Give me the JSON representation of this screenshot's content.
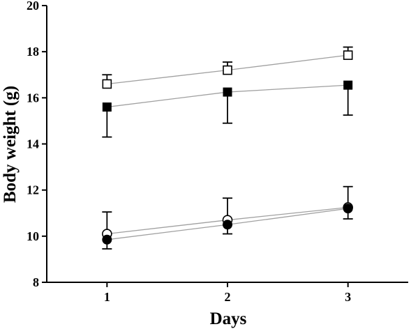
{
  "chart_data": {
    "type": "line",
    "title": "",
    "xlabel": "Days",
    "ylabel": "Body weight (g)",
    "x": [
      1,
      2,
      3
    ],
    "x_tick_labels": [
      "1",
      "2",
      "3"
    ],
    "xlim": [
      0.5,
      3.5
    ],
    "ylim": [
      8,
      20
    ],
    "y_ticks": [
      8,
      10,
      12,
      14,
      16,
      18,
      20
    ],
    "grid": false,
    "legend": "none",
    "colors": {
      "axis": "#000000",
      "series_line": "#a0a0a0",
      "marker": "#000000"
    },
    "series": [
      {
        "marker": "open-square",
        "values": [
          16.6,
          17.2,
          17.85
        ],
        "error_up": [
          0.4,
          0.35,
          0.35
        ],
        "error_down": [
          0,
          0,
          0
        ]
      },
      {
        "marker": "filled-square",
        "values": [
          15.6,
          16.25,
          16.55
        ],
        "error_up": [
          0,
          0,
          0
        ],
        "error_down": [
          1.3,
          1.35,
          1.3
        ]
      },
      {
        "marker": "open-circle",
        "values": [
          10.1,
          10.7,
          11.25
        ],
        "error_up": [
          0.95,
          0.95,
          0.9
        ],
        "error_down": [
          0,
          0,
          0
        ]
      },
      {
        "marker": "filled-circle",
        "values": [
          9.85,
          10.5,
          11.2
        ],
        "error_up": [
          0,
          0,
          0
        ],
        "error_down": [
          0.4,
          0.4,
          0.45
        ]
      }
    ]
  }
}
